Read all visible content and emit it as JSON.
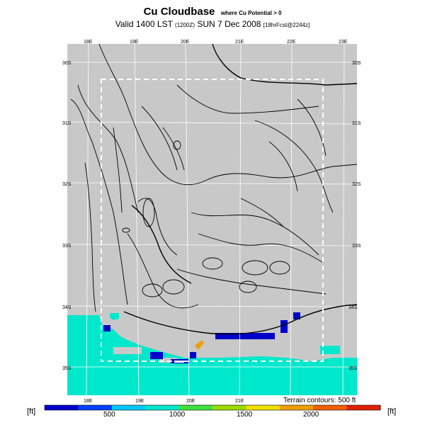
{
  "header": {
    "title": "Cu Cloudbase",
    "title_note": "where Cu Potential > 0",
    "valid_main": "Valid 1400 LST",
    "valid_utc": "(1200Z)",
    "valid_date": "SUN 7 Dec 2008",
    "forecast": "[18hrFcst@2244z]"
  },
  "map": {
    "lon_labels_top": [
      "18E",
      "19E",
      "20E",
      "21E",
      "22E",
      "23E"
    ],
    "lon_labels_bottom": [
      "18E",
      "19E",
      "20E",
      "21E"
    ],
    "lat_labels_left": [
      "30S",
      "31S",
      "32S",
      "33S",
      "34S",
      "35S"
    ],
    "lat_labels_right": [
      "30S",
      "31S",
      "32S",
      "33S",
      "34S",
      "35S"
    ],
    "terrain_note": "Terrain contours: 500 ft",
    "colors": {
      "land": "#c8c8c8",
      "low_cloudbase": "#0000cc",
      "ocean_fill": "#00e8cc",
      "mid_cloudbase": "#f0a000",
      "contour": "#000000"
    }
  },
  "colorbar": {
    "unit_left": "[ft]",
    "unit_right": "[ft]",
    "ticks": [
      "500",
      "1000",
      "1500",
      "2000"
    ],
    "colors": [
      "#0000cc",
      "#0040ff",
      "#00c8ff",
      "#00e8cc",
      "#40e040",
      "#9cdc00",
      "#f0e000",
      "#f0a000",
      "#f06000",
      "#e02000"
    ]
  }
}
